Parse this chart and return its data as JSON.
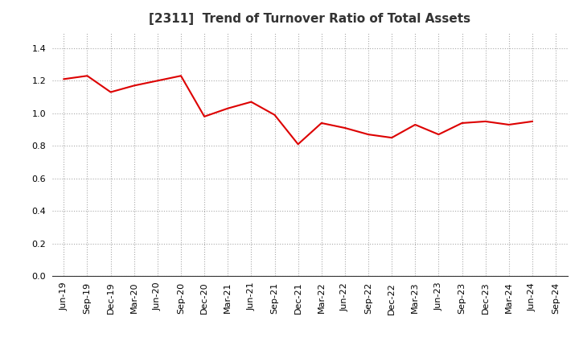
{
  "title": "[2311]  Trend of Turnover Ratio of Total Assets",
  "labels": [
    "Jun-19",
    "Sep-19",
    "Dec-19",
    "Mar-20",
    "Jun-20",
    "Sep-20",
    "Dec-20",
    "Mar-21",
    "Jun-21",
    "Sep-21",
    "Dec-21",
    "Mar-22",
    "Jun-22",
    "Sep-22",
    "Dec-22",
    "Mar-23",
    "Jun-23",
    "Sep-23",
    "Dec-23",
    "Mar-24",
    "Jun-24",
    "Sep-24"
  ],
  "values": [
    1.21,
    1.23,
    1.13,
    1.17,
    1.2,
    1.23,
    0.98,
    1.03,
    1.07,
    0.99,
    0.81,
    0.94,
    0.91,
    0.87,
    0.85,
    0.93,
    0.87,
    0.94,
    0.95,
    0.93,
    0.95,
    null
  ],
  "line_color": "#DD0000",
  "line_width": 1.5,
  "ylim": [
    0.0,
    1.5
  ],
  "yticks": [
    0.0,
    0.2,
    0.4,
    0.6,
    0.8,
    1.0,
    1.2,
    1.4
  ],
  "grid_color": "#AAAAAA",
  "background_color": "#FFFFFF",
  "title_fontsize": 11,
  "tick_fontsize": 8
}
